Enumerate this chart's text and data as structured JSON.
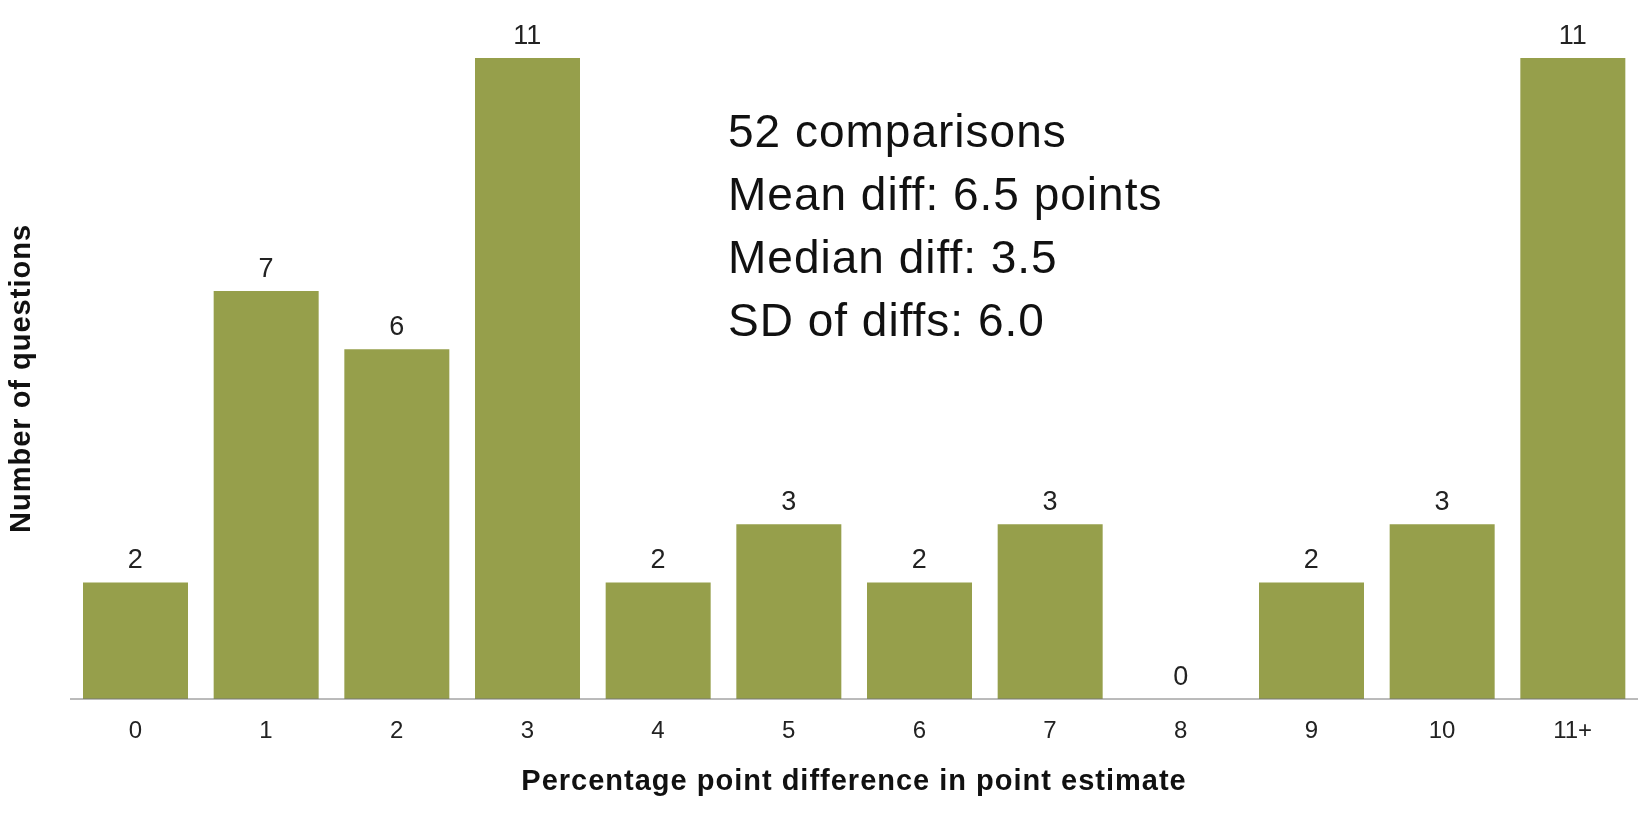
{
  "chart_data": {
    "type": "bar",
    "xlabel": "Percentage point difference in point estimate",
    "ylabel": "Number of questions",
    "categories": [
      "0",
      "1",
      "2",
      "3",
      "4",
      "5",
      "6",
      "7",
      "8",
      "9",
      "10",
      "11+"
    ],
    "values": [
      2,
      7,
      6,
      11,
      2,
      3,
      2,
      3,
      0,
      2,
      3,
      11
    ],
    "color": "#969f4b",
    "data_labels": true,
    "tick_labels": "x",
    "grid": false,
    "legend": false,
    "annotations": [
      "52 comparisons",
      "Mean diff: 6.5 points",
      "Median diff: 3.5",
      "SD of diffs: 6.0"
    ]
  }
}
